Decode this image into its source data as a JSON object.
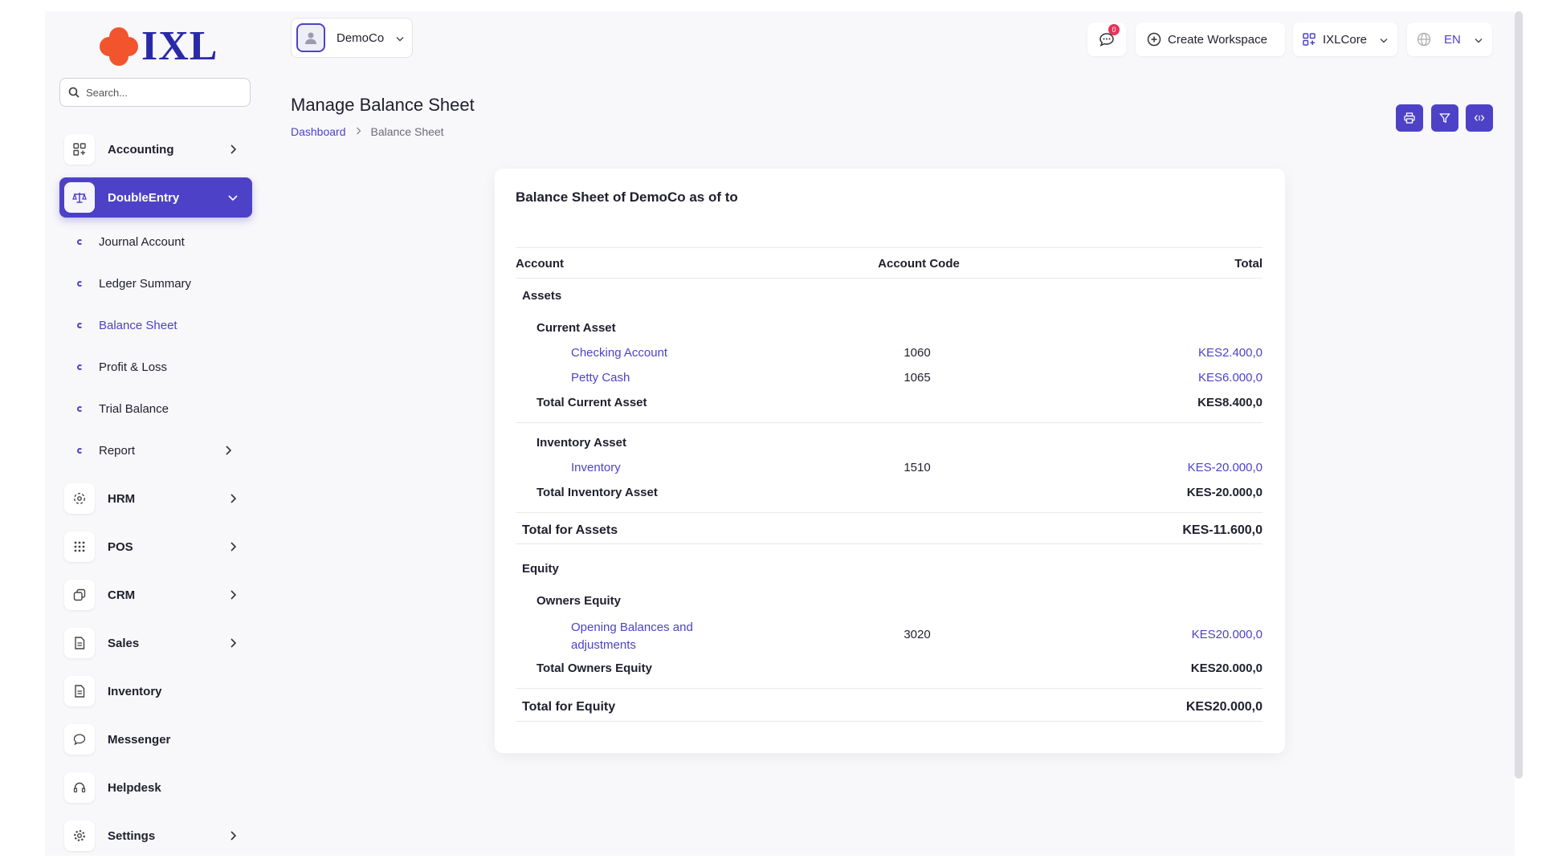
{
  "logo": {
    "text": "IXL"
  },
  "search": {
    "placeholder": "Search..."
  },
  "sidebar": {
    "items": [
      {
        "label": "Accounting"
      },
      {
        "label": "DoubleEntry"
      },
      {
        "label": "HRM"
      },
      {
        "label": "POS"
      },
      {
        "label": "CRM"
      },
      {
        "label": "Sales"
      },
      {
        "label": "Inventory"
      },
      {
        "label": "Messenger"
      },
      {
        "label": "Helpdesk"
      },
      {
        "label": "Settings"
      }
    ],
    "sub_items": [
      {
        "label": "Journal Account"
      },
      {
        "label": "Ledger Summary"
      },
      {
        "label": "Balance Sheet"
      },
      {
        "label": "Profit & Loss"
      },
      {
        "label": "Trial Balance"
      },
      {
        "label": "Report"
      }
    ]
  },
  "topbar": {
    "company": "DemoCo",
    "notification_count": "0",
    "create_workspace": "Create Workspace",
    "workspace": "IXLCore",
    "language": "EN"
  },
  "page": {
    "title": "Manage Balance Sheet",
    "breadcrumb": {
      "home": "Dashboard",
      "current": "Balance Sheet"
    }
  },
  "report": {
    "title": "Balance Sheet of DemoCo as of to",
    "columns": {
      "account": "Account",
      "code": "Account Code",
      "total": "Total"
    },
    "assets": {
      "heading": "Assets",
      "current": {
        "heading": "Current Asset",
        "rows": [
          {
            "account": "Checking Account",
            "code": "1060",
            "total": "KES2.400,0"
          },
          {
            "account": "Petty Cash",
            "code": "1065",
            "total": "KES6.000,0"
          }
        ],
        "total_label": "Total Current Asset",
        "total": "KES8.400,0"
      },
      "inventory": {
        "heading": "Inventory Asset",
        "rows": [
          {
            "account": "Inventory",
            "code": "1510",
            "total": "KES-20.000,0"
          }
        ],
        "total_label": "Total Inventory Asset",
        "total": "KES-20.000,0"
      },
      "total_label": "Total for Assets",
      "total": "KES-11.600,0"
    },
    "equity": {
      "heading": "Equity",
      "owners": {
        "heading": "Owners Equity",
        "rows": [
          {
            "account_line1": "Opening Balances and",
            "account_line2": "adjustments",
            "code": "3020",
            "total": "KES20.000,0"
          }
        ],
        "total_label": "Total Owners Equity",
        "total": "KES20.000,0"
      },
      "total_label": "Total for Equity",
      "total": "KES20.000,0"
    }
  },
  "colors": {
    "accent": "#4d42c7",
    "logo_orange": "#f2542d",
    "logo_blue": "#2a2aa8",
    "badge": "#e6335a"
  }
}
